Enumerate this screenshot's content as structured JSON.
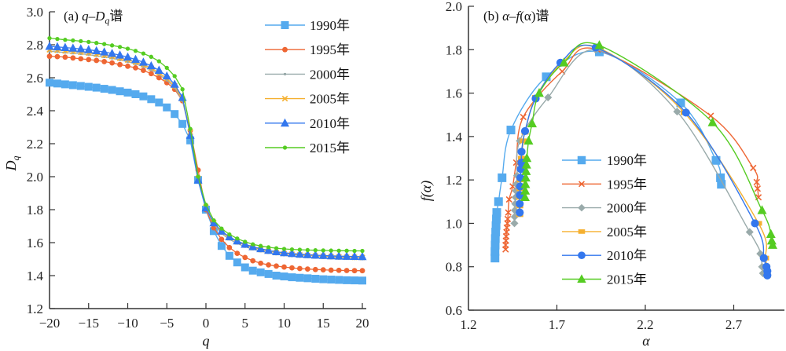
{
  "chart_data": [
    {
      "type": "line",
      "title_prefix": "(a) ",
      "title_var": "q",
      "title_dash": "–",
      "title_var2": "D",
      "title_sub": "q",
      "title_suffix": "谱",
      "xlabel": "q",
      "ylabel": "D",
      "ylabel_sub": "q",
      "xlim": [
        -20,
        20
      ],
      "ylim": [
        1.2,
        3.0
      ],
      "xticks": [
        -20,
        -15,
        -10,
        -5,
        0,
        5,
        10,
        15,
        20
      ],
      "xtick_labels": [
        "−20",
        "−15",
        "−10",
        "−5",
        "0",
        "5",
        "10",
        "15",
        "20"
      ],
      "yticks": [
        1.2,
        1.4,
        1.6,
        1.8,
        2.0,
        2.2,
        2.4,
        2.6,
        2.8,
        3.0
      ],
      "ytick_labels": [
        "1.2",
        "1.4",
        "1.6",
        "1.8",
        "2.0",
        "2.2",
        "2.4",
        "2.6",
        "2.8",
        "3.0"
      ],
      "legend_position": "top-right",
      "x": [
        -20,
        -19,
        -18,
        -17,
        -16,
        -15,
        -14,
        -13,
        -12,
        -11,
        -10,
        -9,
        -8,
        -7,
        -6,
        -5,
        -4,
        -3,
        -2,
        -1,
        0,
        1,
        2,
        3,
        4,
        5,
        6,
        7,
        8,
        9,
        10,
        11,
        12,
        13,
        14,
        15,
        16,
        17,
        18,
        19,
        20
      ],
      "series": [
        {
          "name": "1990年",
          "color": "#55aaee",
          "marker": "square",
          "values": [
            2.57,
            2.565,
            2.56,
            2.555,
            2.55,
            2.545,
            2.54,
            2.533,
            2.526,
            2.518,
            2.51,
            2.5,
            2.487,
            2.47,
            2.45,
            2.42,
            2.38,
            2.32,
            2.22,
            1.98,
            1.8,
            1.67,
            1.58,
            1.52,
            1.48,
            1.45,
            1.43,
            1.42,
            1.41,
            1.4,
            1.395,
            1.39,
            1.387,
            1.384,
            1.381,
            1.378,
            1.376,
            1.374,
            1.372,
            1.371,
            1.37
          ]
        },
        {
          "name": "1995年",
          "color": "#ee6633",
          "marker": "circle",
          "values": [
            2.73,
            2.728,
            2.725,
            2.72,
            2.715,
            2.71,
            2.705,
            2.698,
            2.69,
            2.68,
            2.67,
            2.66,
            2.645,
            2.625,
            2.6,
            2.57,
            2.53,
            2.46,
            2.28,
            2.04,
            1.8,
            1.69,
            1.62,
            1.57,
            1.535,
            1.51,
            1.49,
            1.475,
            1.465,
            1.458,
            1.452,
            1.447,
            1.443,
            1.44,
            1.437,
            1.435,
            1.433,
            1.432,
            1.431,
            1.43,
            1.43
          ]
        },
        {
          "name": "2000年",
          "color": "#99aaaa",
          "marker": "dot",
          "values": [
            2.76,
            2.757,
            2.753,
            2.749,
            2.745,
            2.74,
            2.733,
            2.726,
            2.718,
            2.708,
            2.697,
            2.684,
            2.668,
            2.648,
            2.62,
            2.585,
            2.54,
            2.46,
            2.26,
            1.99,
            1.81,
            1.71,
            1.655,
            1.62,
            1.595,
            1.575,
            1.56,
            1.548,
            1.538,
            1.53,
            1.524,
            1.519,
            1.515,
            1.512,
            1.509,
            1.507,
            1.505,
            1.503,
            1.502,
            1.501,
            1.5
          ]
        },
        {
          "name": "2005年",
          "color": "#f5b030",
          "marker": "x",
          "values": [
            2.77,
            2.767,
            2.763,
            2.759,
            2.755,
            2.75,
            2.743,
            2.736,
            2.728,
            2.718,
            2.707,
            2.694,
            2.678,
            2.658,
            2.63,
            2.595,
            2.55,
            2.47,
            2.27,
            1.99,
            1.815,
            1.72,
            1.665,
            1.63,
            1.605,
            1.585,
            1.57,
            1.558,
            1.548,
            1.54,
            1.534,
            1.529,
            1.525,
            1.522,
            1.519,
            1.517,
            1.515,
            1.513,
            1.512,
            1.511,
            1.51
          ]
        },
        {
          "name": "2010年",
          "color": "#3377ee",
          "marker": "triangle",
          "values": [
            2.79,
            2.787,
            2.783,
            2.779,
            2.775,
            2.77,
            2.763,
            2.756,
            2.747,
            2.737,
            2.725,
            2.711,
            2.694,
            2.672,
            2.645,
            2.61,
            2.56,
            2.48,
            2.25,
            1.98,
            1.81,
            1.72,
            1.67,
            1.635,
            1.61,
            1.59,
            1.575,
            1.563,
            1.553,
            1.545,
            1.539,
            1.534,
            1.53,
            1.527,
            1.524,
            1.522,
            1.52,
            1.518,
            1.517,
            1.516,
            1.515
          ]
        },
        {
          "name": "2015年",
          "color": "#55cc22",
          "marker": "circle-small",
          "values": [
            2.84,
            2.835,
            2.83,
            2.826,
            2.822,
            2.817,
            2.811,
            2.804,
            2.796,
            2.787,
            2.776,
            2.763,
            2.747,
            2.727,
            2.7,
            2.66,
            2.61,
            2.53,
            2.29,
            2.0,
            1.83,
            1.735,
            1.685,
            1.65,
            1.625,
            1.605,
            1.59,
            1.58,
            1.572,
            1.566,
            1.562,
            1.559,
            1.557,
            1.555,
            1.554,
            1.553,
            1.552,
            1.551,
            1.551,
            1.55,
            1.55
          ]
        }
      ]
    },
    {
      "type": "line",
      "title_prefix": "(b) ",
      "title_var": "α",
      "title_dash": "–",
      "title_var2": "f",
      "title_paren": "(α)",
      "title_suffix": "谱",
      "xlabel": "α",
      "ylabel": "f(α)",
      "xlim": [
        1.2,
        2.97
      ],
      "ylim": [
        0.6,
        2.0
      ],
      "xticks": [
        1.2,
        1.7,
        2.2,
        2.7
      ],
      "xtick_labels": [
        "1.2",
        "1.7",
        "2.2",
        "2.7"
      ],
      "yticks": [
        0.6,
        0.8,
        1.0,
        1.2,
        1.4,
        1.6,
        1.8,
        2.0
      ],
      "ytick_labels": [
        "0.6",
        "0.8",
        "1.0",
        "1.2",
        "1.4",
        "1.6",
        "1.8",
        "2.0"
      ],
      "legend_position": "center",
      "series": [
        {
          "name": "1990年",
          "color": "#55aaee",
          "marker": "square",
          "points": [
            [
              1.35,
              0.84
            ],
            [
              1.35,
              0.87
            ],
            [
              1.351,
              0.9
            ],
            [
              1.352,
              0.93
            ],
            [
              1.354,
              0.96
            ],
            [
              1.356,
              0.99
            ],
            [
              1.358,
              1.02
            ],
            [
              1.36,
              1.05
            ],
            [
              1.37,
              1.1
            ],
            [
              1.39,
              1.21
            ],
            [
              1.44,
              1.43
            ],
            [
              1.64,
              1.675
            ],
            [
              1.94,
              1.79
            ],
            [
              2.4,
              1.555
            ],
            [
              2.6,
              1.29
            ],
            [
              2.625,
              1.21
            ],
            [
              2.63,
              1.18
            ]
          ]
        },
        {
          "name": "1995年",
          "color": "#ee6633",
          "marker": "x",
          "points": [
            [
              1.41,
              0.88
            ],
            [
              1.41,
              0.9
            ],
            [
              1.412,
              0.92
            ],
            [
              1.413,
              0.94
            ],
            [
              1.415,
              0.96
            ],
            [
              1.417,
              0.98
            ],
            [
              1.42,
              1.0
            ],
            [
              1.422,
              1.02
            ],
            [
              1.425,
              1.05
            ],
            [
              1.43,
              1.11
            ],
            [
              1.45,
              1.17
            ],
            [
              1.47,
              1.28
            ],
            [
              1.51,
              1.49
            ],
            [
              1.73,
              1.7
            ],
            [
              1.93,
              1.8
            ],
            [
              2.57,
              1.495
            ],
            [
              2.81,
              1.255
            ],
            [
              2.83,
              1.19
            ],
            [
              2.835,
              1.16
            ],
            [
              2.84,
              1.12
            ]
          ]
        },
        {
          "name": "2000年",
          "color": "#99aaaa",
          "marker": "diamond",
          "points": [
            [
              1.46,
              1.0
            ],
            [
              1.461,
              1.03
            ],
            [
              1.462,
              1.06
            ],
            [
              1.464,
              1.09
            ],
            [
              1.466,
              1.12
            ],
            [
              1.468,
              1.15
            ],
            [
              1.47,
              1.18
            ],
            [
              1.475,
              1.22
            ],
            [
              1.49,
              1.38
            ],
            [
              1.65,
              1.58
            ],
            [
              1.92,
              1.8
            ],
            [
              2.38,
              1.515
            ],
            [
              2.79,
              0.96
            ],
            [
              2.85,
              0.86
            ],
            [
              2.86,
              0.8
            ],
            [
              2.865,
              0.77
            ]
          ]
        },
        {
          "name": "2005年",
          "color": "#f5b030",
          "marker": "rect",
          "points": [
            [
              1.49,
              1.04
            ],
            [
              1.49,
              1.08
            ],
            [
              1.491,
              1.12
            ],
            [
              1.492,
              1.16
            ],
            [
              1.494,
              1.2
            ],
            [
              1.496,
              1.25
            ],
            [
              1.5,
              1.3
            ],
            [
              1.51,
              1.38
            ],
            [
              1.52,
              1.42
            ],
            [
              1.58,
              1.58
            ],
            [
              1.73,
              1.74
            ],
            [
              1.93,
              1.81
            ],
            [
              2.42,
              1.51
            ],
            [
              2.84,
              1.0
            ],
            [
              2.88,
              0.84
            ],
            [
              2.885,
              0.8
            ],
            [
              2.89,
              0.76
            ]
          ]
        },
        {
          "name": "2010年",
          "color": "#3377ee",
          "marker": "circle",
          "points": [
            [
              1.49,
              1.05
            ],
            [
              1.49,
              1.09
            ],
            [
              1.491,
              1.13
            ],
            [
              1.492,
              1.17
            ],
            [
              1.494,
              1.21
            ],
            [
              1.496,
              1.25
            ],
            [
              1.5,
              1.28
            ],
            [
              1.5,
              1.33
            ],
            [
              1.52,
              1.425
            ],
            [
              1.58,
              1.575
            ],
            [
              1.72,
              1.74
            ],
            [
              1.92,
              1.81
            ],
            [
              2.43,
              1.51
            ],
            [
              2.82,
              1.0
            ],
            [
              2.87,
              0.84
            ],
            [
              2.885,
              0.8
            ],
            [
              2.89,
              0.78
            ],
            [
              2.89,
              0.76
            ]
          ]
        },
        {
          "name": "2015年",
          "color": "#55cc22",
          "marker": "triangle",
          "points": [
            [
              1.52,
              1.12
            ],
            [
              1.521,
              1.15
            ],
            [
              1.522,
              1.18
            ],
            [
              1.524,
              1.21
            ],
            [
              1.526,
              1.24
            ],
            [
              1.528,
              1.27
            ],
            [
              1.53,
              1.3
            ],
            [
              1.54,
              1.38
            ],
            [
              1.56,
              1.46
            ],
            [
              1.6,
              1.6
            ],
            [
              1.74,
              1.74
            ],
            [
              1.94,
              1.82
            ],
            [
              2.58,
              1.465
            ],
            [
              2.86,
              1.06
            ],
            [
              2.91,
              0.95
            ],
            [
              2.915,
              0.92
            ],
            [
              2.92,
              0.9
            ]
          ]
        }
      ]
    }
  ]
}
